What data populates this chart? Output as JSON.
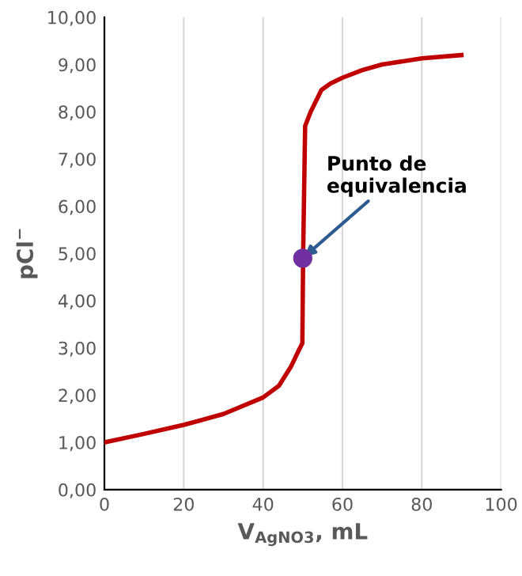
{
  "chart_data": {
    "type": "line",
    "xlabel": "V$_{AgNO3}$, mL",
    "ylabel": "pCl$^{−}$",
    "series": [
      {
        "type": "line",
        "marker": "none",
        "color": "#c00000",
        "x": [
          0,
          10,
          20,
          30,
          40,
          44,
          47,
          49,
          49.9,
          50.1,
          50.6,
          52,
          54.7,
          57,
          60,
          65,
          70,
          80,
          90
        ],
        "values": [
          1.0,
          1.18,
          1.37,
          1.6,
          1.95,
          2.2,
          2.6,
          2.95,
          3.1,
          5.0,
          7.7,
          8.0,
          8.46,
          8.6,
          8.72,
          8.88,
          9.0,
          9.13,
          9.2
        ]
      },
      {
        "type": "scatter",
        "marker": "circle",
        "color": "#7030a0",
        "x": [
          50
        ],
        "values": [
          4.9
        ]
      }
    ],
    "annotations": [
      {
        "text": "Punto de\nequivalencia",
        "x": 50,
        "y": 4.9
      }
    ],
    "xlim": [
      0,
      100
    ],
    "xticks": [
      0,
      20,
      40,
      60,
      80,
      100
    ],
    "ylim": [
      0,
      10
    ],
    "yticks": [
      {
        "value": 0,
        "label": "0,00"
      },
      {
        "value": 1,
        "label": "1,00"
      },
      {
        "value": 2,
        "label": "2,00"
      },
      {
        "value": 3,
        "label": "3,00"
      },
      {
        "value": 4,
        "label": "4,00"
      },
      {
        "value": 5,
        "label": "5,00"
      },
      {
        "value": 6,
        "label": "6,00"
      },
      {
        "value": 7,
        "label": "7,00"
      },
      {
        "value": 8,
        "label": "8,00"
      },
      {
        "value": 9,
        "label": "9,00"
      },
      {
        "value": 10,
        "label": "10,00"
      }
    ],
    "grid": "x",
    "line_style": "solid"
  }
}
